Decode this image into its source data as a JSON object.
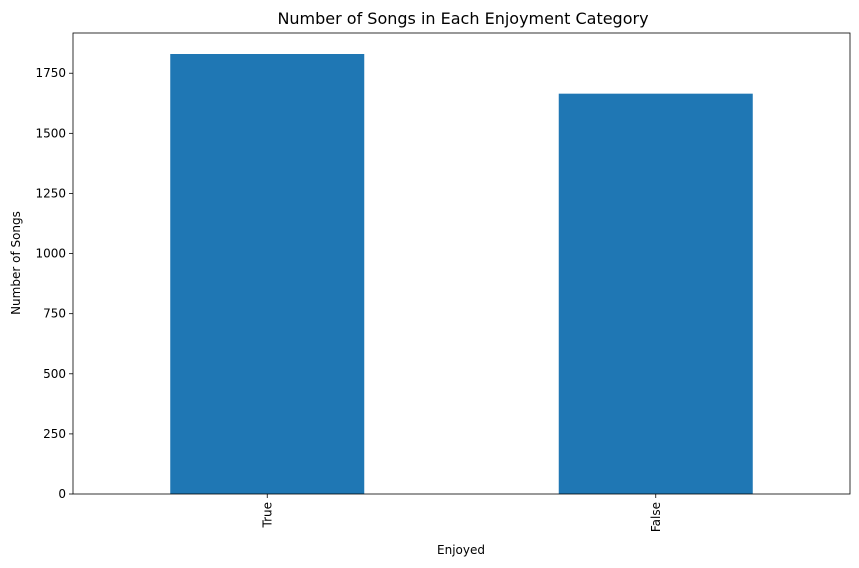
{
  "chart_data": {
    "type": "bar",
    "title": "Number of Songs in Each Enjoyment Category",
    "xlabel": "Enjoyed",
    "ylabel": "Number of Songs",
    "categories": [
      "True",
      "False"
    ],
    "values": [
      1830,
      1665
    ],
    "ylim": [
      0,
      1830
    ],
    "yticks": [
      0,
      250,
      500,
      750,
      1000,
      1250,
      1500,
      1750
    ],
    "bar_color": "#1f77b4",
    "grid": false,
    "legend": "none"
  }
}
